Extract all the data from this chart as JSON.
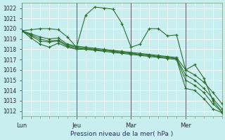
{
  "xlabel": "Pression niveau de la mer( hPa )",
  "background_color": "#c8eef0",
  "grid_color": "#b0dde0",
  "line_color": "#2d6e2d",
  "ylim": [
    1011.5,
    1022.5
  ],
  "yticks": [
    1012,
    1013,
    1014,
    1015,
    1016,
    1017,
    1018,
    1019,
    1020,
    1021,
    1022
  ],
  "xtick_labels": [
    "Lun",
    "Jeu",
    "Mar",
    "Mer"
  ],
  "day_positions": [
    0,
    36,
    72,
    108
  ],
  "xmin": 0,
  "xmax": 132,
  "minor_tick_step": 6,
  "vline_color": "#5a5a6a",
  "series": {
    "s1": [
      [
        0,
        1019.8
      ],
      [
        6,
        1019.9
      ],
      [
        12,
        1020.0
      ],
      [
        18,
        1020.0
      ],
      [
        24,
        1019.9
      ],
      [
        30,
        1019.2
      ],
      [
        36,
        1018.2
      ],
      [
        42,
        1021.3
      ],
      [
        48,
        1022.1
      ],
      [
        54,
        1022.0
      ],
      [
        60,
        1021.9
      ],
      [
        66,
        1020.5
      ],
      [
        72,
        1018.2
      ],
      [
        78,
        1018.5
      ],
      [
        84,
        1020.0
      ],
      [
        90,
        1020.0
      ],
      [
        96,
        1019.3
      ],
      [
        102,
        1019.4
      ],
      [
        108,
        1016.0
      ],
      [
        114,
        1016.5
      ],
      [
        120,
        1015.2
      ],
      [
        126,
        1013.0
      ],
      [
        132,
        1011.9
      ]
    ],
    "s2": [
      [
        0,
        1019.8
      ],
      [
        6,
        1019.5
      ],
      [
        12,
        1019.2
      ],
      [
        18,
        1019.0
      ],
      [
        24,
        1019.1
      ],
      [
        30,
        1018.5
      ],
      [
        36,
        1018.3
      ],
      [
        42,
        1018.2
      ],
      [
        48,
        1018.1
      ],
      [
        54,
        1018.0
      ],
      [
        60,
        1017.9
      ],
      [
        66,
        1017.8
      ],
      [
        72,
        1017.7
      ],
      [
        78,
        1017.6
      ],
      [
        84,
        1017.5
      ],
      [
        90,
        1017.4
      ],
      [
        96,
        1017.3
      ],
      [
        102,
        1017.2
      ],
      [
        108,
        1016.0
      ],
      [
        114,
        1015.5
      ],
      [
        120,
        1014.8
      ],
      [
        126,
        1013.8
      ],
      [
        132,
        1012.7
      ]
    ],
    "s3": [
      [
        0,
        1019.8
      ],
      [
        6,
        1019.4
      ],
      [
        12,
        1019.0
      ],
      [
        18,
        1018.8
      ],
      [
        24,
        1018.9
      ],
      [
        30,
        1018.4
      ],
      [
        36,
        1018.2
      ],
      [
        42,
        1018.1
      ],
      [
        48,
        1018.0
      ],
      [
        54,
        1017.9
      ],
      [
        60,
        1017.8
      ],
      [
        66,
        1017.7
      ],
      [
        72,
        1017.6
      ],
      [
        78,
        1017.5
      ],
      [
        84,
        1017.4
      ],
      [
        90,
        1017.3
      ],
      [
        96,
        1017.2
      ],
      [
        102,
        1017.1
      ],
      [
        108,
        1015.5
      ],
      [
        114,
        1015.0
      ],
      [
        120,
        1014.2
      ],
      [
        126,
        1013.2
      ],
      [
        132,
        1012.2
      ]
    ],
    "s4": [
      [
        0,
        1019.8
      ],
      [
        6,
        1019.3
      ],
      [
        12,
        1018.8
      ],
      [
        18,
        1018.7
      ],
      [
        24,
        1018.8
      ],
      [
        30,
        1018.3
      ],
      [
        36,
        1018.1
      ],
      [
        42,
        1018.0
      ],
      [
        54,
        1017.9
      ],
      [
        60,
        1017.8
      ],
      [
        66,
        1017.7
      ],
      [
        72,
        1017.6
      ],
      [
        78,
        1017.5
      ],
      [
        84,
        1017.4
      ],
      [
        90,
        1017.3
      ],
      [
        96,
        1017.2
      ],
      [
        102,
        1017.1
      ],
      [
        108,
        1015.0
      ],
      [
        114,
        1014.5
      ],
      [
        120,
        1013.8
      ],
      [
        126,
        1012.7
      ],
      [
        132,
        1011.9
      ]
    ],
    "s5": [
      [
        0,
        1019.8
      ],
      [
        6,
        1019.1
      ],
      [
        12,
        1018.5
      ],
      [
        18,
        1018.2
      ],
      [
        24,
        1018.6
      ],
      [
        30,
        1018.2
      ],
      [
        36,
        1018.0
      ],
      [
        42,
        1018.0
      ],
      [
        48,
        1017.9
      ],
      [
        54,
        1017.8
      ],
      [
        60,
        1017.7
      ],
      [
        66,
        1017.6
      ],
      [
        72,
        1017.5
      ],
      [
        78,
        1017.4
      ],
      [
        84,
        1017.3
      ],
      [
        90,
        1017.2
      ],
      [
        96,
        1017.1
      ],
      [
        102,
        1017.0
      ],
      [
        108,
        1014.2
      ],
      [
        114,
        1014.0
      ],
      [
        120,
        1013.2
      ],
      [
        126,
        1012.2
      ],
      [
        132,
        1011.85
      ]
    ]
  }
}
